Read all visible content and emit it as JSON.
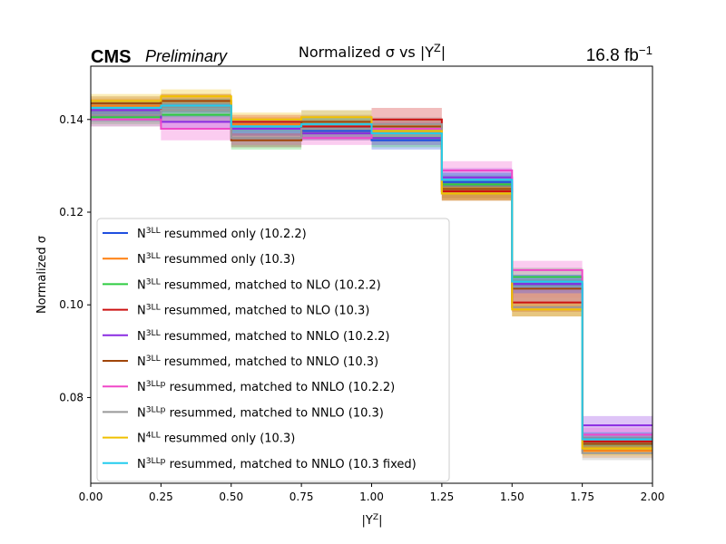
{
  "chart_data": {
    "type": "line",
    "step": true,
    "title": "Normalized σ vs |Y^Z|",
    "experiment": "CMS",
    "status": "Preliminary",
    "luminosity": "16.8 fb^-1",
    "xlabel": "|Y^Z|",
    "ylabel": "Normalized σ",
    "xlim": [
      0,
      2
    ],
    "ylim": [
      0.0615,
      0.1515
    ],
    "xticks": [
      0.0,
      0.25,
      0.5,
      0.75,
      1.0,
      1.25,
      1.5,
      1.75,
      2.0
    ],
    "xtick_labels": [
      "0.00",
      "0.25",
      "0.50",
      "0.75",
      "1.00",
      "1.25",
      "1.50",
      "1.75",
      "2.00"
    ],
    "yticks": [
      0.08,
      0.1,
      0.12,
      0.14
    ],
    "ytick_labels": [
      "0.08",
      "0.10",
      "0.12",
      "0.14"
    ],
    "bin_edges": [
      0,
      0.25,
      0.5,
      0.75,
      1.0,
      1.25,
      1.5,
      1.75,
      2.0
    ],
    "legend_position": "lower-left",
    "series": [
      {
        "name": "N^3LL resummed only (10.2.2)",
        "color": "#1f4fe0",
        "values": [
          0.141,
          0.142,
          0.138,
          0.1375,
          0.1355,
          0.1265,
          0.1045,
          0.071
        ],
        "band": [
          [
            0.1395,
            0.1425
          ],
          [
            0.1405,
            0.1435
          ],
          [
            0.1365,
            0.1395
          ],
          [
            0.136,
            0.139
          ],
          [
            0.1335,
            0.1375
          ],
          [
            0.1245,
            0.1285
          ],
          [
            0.1025,
            0.1065
          ],
          [
            0.0695,
            0.0725
          ]
        ]
      },
      {
        "name": "N^3LL resummed only (10.3)",
        "color": "#ff7f0e",
        "values": [
          0.143,
          0.144,
          0.139,
          0.139,
          0.137,
          0.1245,
          0.0995,
          0.0685
        ],
        "band": [
          [
            0.1415,
            0.1445
          ],
          [
            0.1425,
            0.1455
          ],
          [
            0.1375,
            0.1405
          ],
          [
            0.1375,
            0.1405
          ],
          [
            0.1355,
            0.1385
          ],
          [
            0.1225,
            0.1265
          ],
          [
            0.0975,
            0.1015
          ],
          [
            0.067,
            0.07
          ]
        ]
      },
      {
        "name": "N^3LL resummed, matched to NLO (10.2.2)",
        "color": "#2ecc40",
        "values": [
          0.1405,
          0.141,
          0.136,
          0.137,
          0.136,
          0.126,
          0.106,
          0.07
        ],
        "band": [
          [
            0.139,
            0.142
          ],
          [
            0.1395,
            0.1425
          ],
          [
            0.1335,
            0.1385
          ],
          [
            0.1355,
            0.1385
          ],
          [
            0.134,
            0.138
          ],
          [
            0.124,
            0.128
          ],
          [
            0.104,
            0.108
          ],
          [
            0.0685,
            0.0715
          ]
        ]
      },
      {
        "name": "N^3LL resummed, matched to NLO (10.3)",
        "color": "#cc1111",
        "values": [
          0.142,
          0.143,
          0.1395,
          0.1385,
          0.14,
          0.1245,
          0.1005,
          0.0705
        ],
        "band": [
          [
            0.1405,
            0.1435
          ],
          [
            0.1415,
            0.1445
          ],
          [
            0.138,
            0.141
          ],
          [
            0.137,
            0.14
          ],
          [
            0.1375,
            0.1425
          ],
          [
            0.1225,
            0.1265
          ],
          [
            0.0985,
            0.1025
          ],
          [
            0.069,
            0.072
          ]
        ]
      },
      {
        "name": "N^3LL resummed, matched to NNLO (10.2.2)",
        "color": "#8a2be2",
        "values": [
          0.142,
          0.1395,
          0.138,
          0.137,
          0.136,
          0.1275,
          0.1045,
          0.074
        ],
        "band": [
          [
            0.1405,
            0.1435
          ],
          [
            0.138,
            0.141
          ],
          [
            0.1365,
            0.1395
          ],
          [
            0.1355,
            0.1385
          ],
          [
            0.1345,
            0.1375
          ],
          [
            0.1255,
            0.1295
          ],
          [
            0.1025,
            0.1065
          ],
          [
            0.072,
            0.076
          ]
        ]
      },
      {
        "name": "N^3LL resummed, matched to NNLO (10.3)",
        "color": "#a0460a",
        "values": [
          0.1435,
          0.144,
          0.1355,
          0.1395,
          0.1385,
          0.125,
          0.1035,
          0.07
        ],
        "band": [
          [
            0.142,
            0.145
          ],
          [
            0.1425,
            0.1455
          ],
          [
            0.134,
            0.137
          ],
          [
            0.138,
            0.141
          ],
          [
            0.137,
            0.14
          ],
          [
            0.123,
            0.127
          ],
          [
            0.1015,
            0.1055
          ],
          [
            0.0685,
            0.0715
          ]
        ]
      },
      {
        "name": "N^3LLp resummed, matched to NNLO (10.2.2)",
        "color": "#f048c8",
        "values": [
          0.14,
          0.138,
          0.136,
          0.136,
          0.138,
          0.129,
          0.1075,
          0.072
        ],
        "band": [
          [
            0.1385,
            0.1415
          ],
          [
            0.1355,
            0.1405
          ],
          [
            0.1345,
            0.1375
          ],
          [
            0.1345,
            0.1375
          ],
          [
            0.1365,
            0.1395
          ],
          [
            0.127,
            0.131
          ],
          [
            0.1055,
            0.1095
          ],
          [
            0.0705,
            0.0735
          ]
        ]
      },
      {
        "name": "N^3LLp resummed, matched to NNLO (10.3)",
        "color": "#999999",
        "values": [
          0.141,
          0.142,
          0.136,
          0.138,
          0.139,
          0.124,
          0.0995,
          0.068
        ],
        "band": [
          [
            0.1385,
            0.1435
          ],
          [
            0.1405,
            0.1435
          ],
          [
            0.134,
            0.1385
          ],
          [
            0.136,
            0.142
          ],
          [
            0.1375,
            0.1405
          ],
          [
            0.1225,
            0.1255
          ],
          [
            0.0975,
            0.1015
          ],
          [
            0.0665,
            0.0695
          ]
        ]
      },
      {
        "name": "N^4LL resummed only (10.3)",
        "color": "#f0c000",
        "values": [
          0.144,
          0.145,
          0.14,
          0.1405,
          0.1375,
          0.124,
          0.099,
          0.069
        ],
        "band": [
          [
            0.1425,
            0.1455
          ],
          [
            0.1435,
            0.1465
          ],
          [
            0.1385,
            0.1415
          ],
          [
            0.139,
            0.142
          ],
          [
            0.136,
            0.139
          ],
          [
            0.1225,
            0.1255
          ],
          [
            0.0975,
            0.1005
          ],
          [
            0.0675,
            0.0705
          ]
        ]
      },
      {
        "name": "N^3LLp resummed, matched to NNLO (10.3 fixed)",
        "color": "#22ccee",
        "values": [
          0.1425,
          0.143,
          0.1385,
          0.139,
          0.137,
          0.127,
          0.105,
          0.071
        ],
        "band": [
          [
            0.141,
            0.144
          ],
          [
            0.1415,
            0.1445
          ],
          [
            0.137,
            0.14
          ],
          [
            0.1375,
            0.1405
          ],
          [
            0.1355,
            0.1385
          ],
          [
            0.1255,
            0.1285
          ],
          [
            0.1035,
            0.1065
          ],
          [
            0.0695,
            0.0725
          ]
        ]
      }
    ]
  }
}
